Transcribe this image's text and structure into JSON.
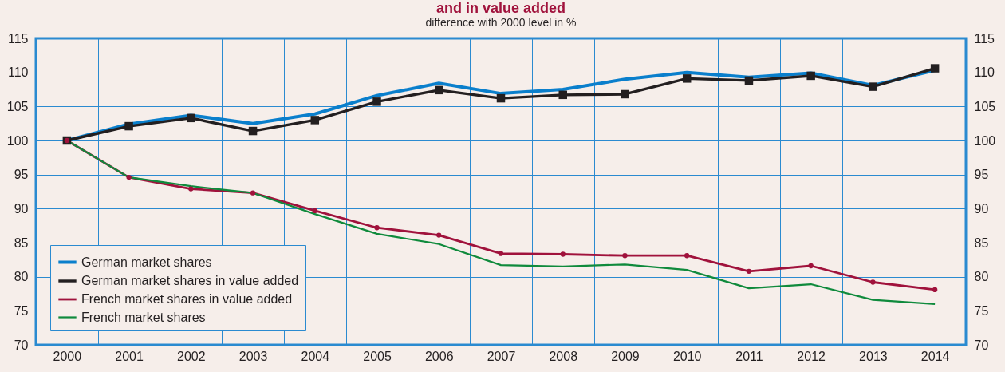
{
  "chart_data": {
    "type": "line",
    "title": "and in value added",
    "subtitle": "difference with 2000 level in %",
    "categories": [
      "2000",
      "2001",
      "2002",
      "2003",
      "2004",
      "2005",
      "2006",
      "2007",
      "2008",
      "2009",
      "2010",
      "2011",
      "2012",
      "2013",
      "2014"
    ],
    "series": [
      {
        "name": "German market shares",
        "color": "#0a7fcc",
        "marker": "none",
        "values": [
          100,
          102.4,
          103.7,
          102.5,
          103.9,
          106.6,
          108.4,
          106.9,
          107.5,
          109,
          110,
          109.3,
          109.9,
          108.1,
          110.3
        ]
      },
      {
        "name": "German market shares in value added",
        "color": "#231f20",
        "marker": "square",
        "values": [
          100,
          102.1,
          103.3,
          101.4,
          103,
          105.7,
          107.4,
          106.2,
          106.7,
          106.8,
          109.1,
          108.8,
          109.5,
          107.9,
          110.6
        ]
      },
      {
        "name": "French market shares in value added",
        "color": "#a0123c",
        "marker": "circle",
        "values": [
          100,
          94.6,
          92.9,
          92.3,
          89.7,
          87.2,
          86.1,
          83.4,
          83.3,
          83.1,
          83.1,
          80.8,
          81.6,
          79.2,
          78.1
        ]
      },
      {
        "name": "French market shares",
        "color": "#0f8a3c",
        "marker": "none",
        "values": [
          100,
          94.6,
          93.3,
          92.3,
          89.2,
          86.3,
          84.8,
          81.7,
          81.5,
          81.8,
          81,
          78.3,
          78.9,
          76.6,
          76
        ]
      }
    ],
    "ylim": [
      70,
      115
    ],
    "yticks": [
      70,
      75,
      80,
      85,
      90,
      95,
      100,
      105,
      110,
      115
    ],
    "y2lim": [
      70,
      115
    ],
    "y2ticks": [
      70,
      75,
      80,
      85,
      90,
      95,
      100,
      105,
      110,
      115
    ],
    "grid": true,
    "legend": "bottom left"
  }
}
